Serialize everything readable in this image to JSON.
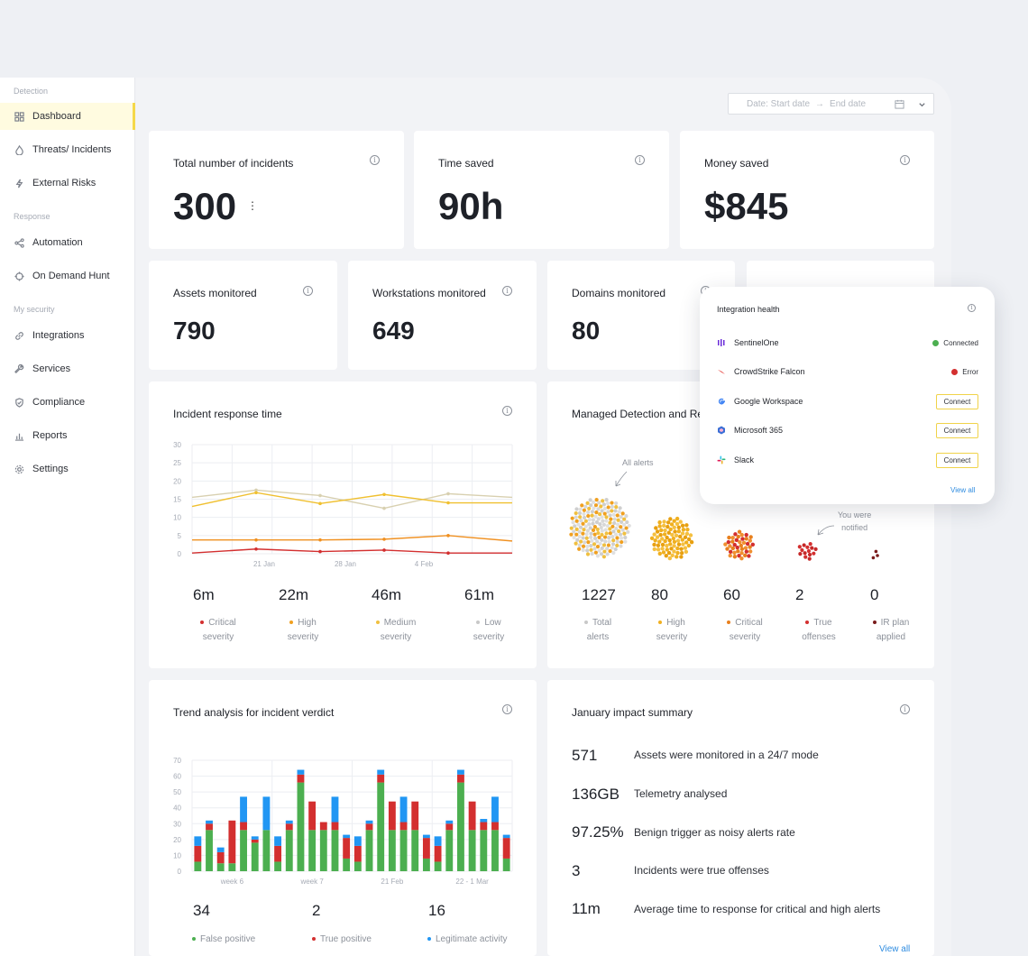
{
  "sidebar": {
    "sections": [
      "Detection",
      "Response",
      "My security"
    ],
    "items": [
      {
        "label": "Dashboard",
        "icon": "grid-icon",
        "active": true
      },
      {
        "label": "Threats/ Incidents",
        "icon": "flame-icon"
      },
      {
        "label": "External Risks",
        "icon": "lightning-icon"
      },
      {
        "label": "Automation",
        "icon": "share-icon"
      },
      {
        "label": "On Demand Hunt",
        "icon": "crosshair-icon"
      },
      {
        "label": "Integrations",
        "icon": "link-icon"
      },
      {
        "label": "Services",
        "icon": "wrench-icon"
      },
      {
        "label": "Compliance",
        "icon": "shield-check-icon"
      },
      {
        "label": "Reports",
        "icon": "bar-chart-icon"
      },
      {
        "label": "Settings",
        "icon": "gear-icon"
      }
    ]
  },
  "date_filter": {
    "start": "Date: Start date",
    "arrow": "→",
    "end": "End date",
    "icon": "calendar-icon"
  },
  "kpis": [
    {
      "title": "Total number of incidents",
      "value": "300"
    },
    {
      "title": "Time saved",
      "value": "90h"
    },
    {
      "title": "Money saved",
      "value": "$845"
    }
  ],
  "monitors": [
    {
      "title": "Assets monitored",
      "value": "790"
    },
    {
      "title": "Workstations monitored",
      "value": "649"
    },
    {
      "title": "Domains monitored",
      "value": "80"
    }
  ],
  "response_time": {
    "title": "Incident response time",
    "stats": [
      {
        "value": "6m",
        "label1": "Critical",
        "label2": "severity",
        "color": "#d32f2f"
      },
      {
        "value": "22m",
        "label1": "High",
        "label2": "severity",
        "color": "#f0a020"
      },
      {
        "value": "46m",
        "label1": "Medium",
        "label2": "severity",
        "color": "#f0c040"
      },
      {
        "value": "61m",
        "label1": "Low",
        "label2": "severity",
        "color": "#c8c8c8"
      }
    ]
  },
  "mdr": {
    "title": "Managed Detection and Re",
    "annot_all": "All alerts",
    "annot_notified_1": "You were",
    "annot_notified_2": "notified",
    "stats": [
      {
        "value": "1227",
        "label1": "Total",
        "label2": "alerts",
        "color": "#c8c8c8"
      },
      {
        "value": "80",
        "label1": "High",
        "label2": "severity",
        "color": "#f0b020"
      },
      {
        "value": "60",
        "label1": "Critical",
        "label2": "severity",
        "color": "#e8801e"
      },
      {
        "value": "2",
        "label1": "True",
        "label2": "offenses",
        "color": "#d32f2f"
      },
      {
        "value": "0",
        "label1": "IR plan",
        "label2": "applied",
        "color": "#7a1c1c"
      }
    ]
  },
  "trend": {
    "title": "Trend analysis for incident verdict",
    "stats": [
      {
        "value": "34",
        "label": "False positive",
        "color": "#4caf50"
      },
      {
        "value": "2",
        "label": "True positive",
        "color": "#d32f2f"
      },
      {
        "value": "16",
        "label": "Legitimate activity",
        "color": "#2196f3"
      }
    ]
  },
  "impact": {
    "title": "January impact summary",
    "rows": [
      {
        "num": "571",
        "text": "Assets were monitored in a 24/7 mode"
      },
      {
        "num": "136GB",
        "text": "Telemetry analysed"
      },
      {
        "num": "97.25%",
        "text": "Benign trigger as noisy alerts rate"
      },
      {
        "num": "3",
        "text": "Incidents were true offenses"
      },
      {
        "num": "11m",
        "text": "Average time to response for critical and high alerts"
      }
    ],
    "view_all": "View all"
  },
  "integration_health": {
    "title": "Integration health",
    "items": [
      {
        "name": "SentinelOne",
        "status": "Connected",
        "status_color": "#4caf50",
        "logo_color": "#6a2bd8"
      },
      {
        "name": "CrowdStrike Falcon",
        "status": "Error",
        "status_color": "#d32f2f",
        "logo_color": "#e53935"
      },
      {
        "name": "Google Workspace",
        "button": "Connect",
        "logo_color": "#4285f4"
      },
      {
        "name": "Microsoft 365",
        "button": "Connect",
        "logo_color": "#3b6fd6"
      },
      {
        "name": "Slack",
        "button": "Connect",
        "logo_color": "#e01e5a"
      }
    ],
    "view_all": "View all"
  },
  "chart_data": [
    {
      "type": "line",
      "x_ticks": [
        "21 Jan",
        "28 Jan",
        "4 Feb"
      ],
      "ylim": [
        0,
        30
      ],
      "y_ticks": [
        0,
        5,
        10,
        15,
        20,
        25,
        30
      ],
      "grid": true,
      "series": [
        {
          "color": "#d8d0b0",
          "values": [
            15.5,
            17.5,
            16,
            12.5,
            16.5,
            15.5
          ]
        },
        {
          "color": "#f0c030",
          "values": [
            13,
            16.8,
            13.8,
            16.3,
            14,
            14
          ]
        },
        {
          "color": "#f09020",
          "values": [
            3.8,
            3.8,
            3.8,
            4,
            5,
            3.5
          ]
        },
        {
          "color": "#d32f2f",
          "values": [
            0.2,
            1.3,
            0.6,
            1,
            0.2,
            0.2
          ]
        }
      ]
    },
    {
      "type": "bar",
      "stacked": true,
      "x_ticks": [
        "week 6",
        "week 7",
        "21 Feb",
        "22 - 1 Mar"
      ],
      "ylim": [
        0,
        70
      ],
      "y_ticks": [
        0,
        10,
        20,
        30,
        40,
        50,
        60,
        70
      ],
      "grid": true,
      "series_colors": [
        "#4caf50",
        "#d32f2f",
        "#2196f3"
      ],
      "bars": [
        [
          6,
          10,
          6
        ],
        [
          26,
          4,
          2
        ],
        [
          5,
          7,
          3
        ],
        [
          5,
          27,
          0
        ],
        [
          26,
          5,
          16
        ],
        [
          18,
          2,
          2
        ],
        [
          26,
          0,
          21
        ],
        [
          6,
          10,
          6
        ],
        [
          26,
          4,
          2
        ],
        [
          56,
          5,
          3
        ],
        [
          26,
          18,
          0
        ],
        [
          26,
          5,
          0
        ],
        [
          26,
          5,
          16
        ],
        [
          8,
          13,
          2
        ],
        [
          6,
          10,
          6
        ],
        [
          26,
          4,
          2
        ],
        [
          56,
          5,
          3
        ],
        [
          26,
          18,
          0
        ],
        [
          26,
          5,
          16
        ],
        [
          26,
          18,
          0
        ],
        [
          8,
          13,
          2
        ],
        [
          6,
          10,
          6
        ],
        [
          26,
          4,
          2
        ],
        [
          56,
          5,
          3
        ],
        [
          26,
          18,
          0
        ],
        [
          26,
          5,
          2
        ],
        [
          26,
          5,
          16
        ],
        [
          8,
          13,
          2
        ]
      ]
    }
  ]
}
